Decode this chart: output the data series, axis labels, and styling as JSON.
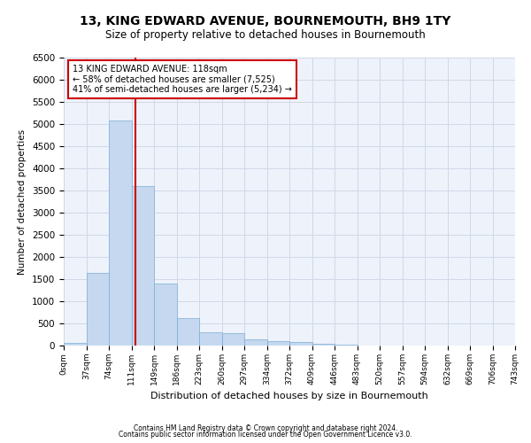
{
  "title": "13, KING EDWARD AVENUE, BOURNEMOUTH, BH9 1TY",
  "subtitle": "Size of property relative to detached houses in Bournemouth",
  "xlabel": "Distribution of detached houses by size in Bournemouth",
  "ylabel": "Number of detached properties",
  "footnote1": "Contains HM Land Registry data © Crown copyright and database right 2024.",
  "footnote2": "Contains public sector information licensed under the Open Government Licence v3.0.",
  "annotation_line1": "13 KING EDWARD AVENUE: 118sqm",
  "annotation_line2": "← 58% of detached houses are smaller (7,525)",
  "annotation_line3": "41% of semi-detached houses are larger (5,234) →",
  "bar_color": "#c5d8ef",
  "bar_edge_color": "#7aadd4",
  "grid_color": "#d0d9e8",
  "background_color": "#eef2fa",
  "property_line_color": "#cc0000",
  "annotation_box_color": "#cc0000",
  "bin_edges": [
    0,
    37,
    74,
    111,
    148,
    185,
    222,
    259,
    296,
    333,
    370,
    407,
    444,
    481,
    518,
    555,
    592,
    629,
    666,
    703,
    740
  ],
  "bin_labels": [
    "0sqm",
    "37sqm",
    "74sqm",
    "111sqm",
    "149sqm",
    "186sqm",
    "223sqm",
    "260sqm",
    "297sqm",
    "334sqm",
    "372sqm",
    "409sqm",
    "446sqm",
    "483sqm",
    "520sqm",
    "557sqm",
    "594sqm",
    "632sqm",
    "669sqm",
    "706sqm",
    "743sqm"
  ],
  "bar_heights": [
    70,
    1650,
    5080,
    3600,
    1400,
    620,
    300,
    290,
    140,
    110,
    80,
    50,
    20,
    0,
    0,
    0,
    0,
    0,
    0,
    0
  ],
  "property_size": 118,
  "ylim": [
    0,
    6500
  ],
  "xlim": [
    0,
    740
  ],
  "title_fontsize": 10,
  "subtitle_fontsize": 8.5,
  "ylabel_fontsize": 7.5,
  "xlabel_fontsize": 8,
  "ytick_fontsize": 7.5,
  "xtick_fontsize": 6.5,
  "annotation_fontsize": 7,
  "footnote_fontsize": 5.5
}
